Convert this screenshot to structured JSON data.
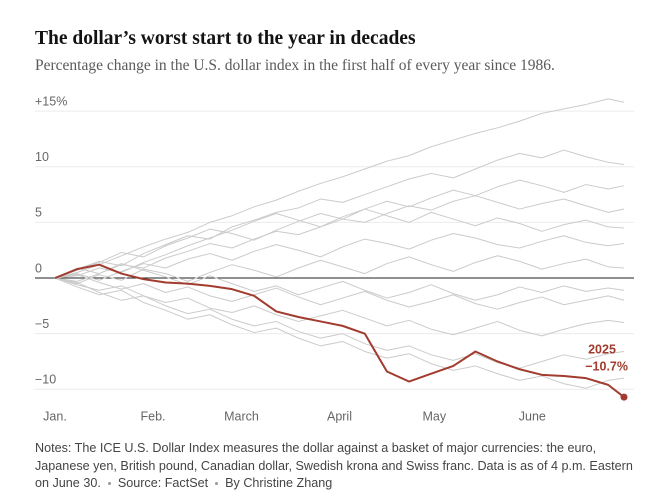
{
  "chart_data": {
    "type": "line",
    "title": "The dollar’s worst start to the year in decades",
    "subtitle": "Percentage change in the U.S. dollar index in the first half of every year since 1986.",
    "notes": "Notes: The ICE U.S. Dollar Index measures the dollar against a basket of major currencies: the euro, Japanese yen, British pound, Canadian dollar, Swedish krona and Swiss franc. Data is as of 4 p.m. Eastern on June 30.",
    "source": "Source: FactSet",
    "byline": "By Christine Zhang",
    "x": [
      0,
      7,
      14,
      21,
      28,
      35,
      42,
      49,
      56,
      63,
      70,
      77,
      84,
      91,
      98,
      105,
      112,
      119,
      126,
      133,
      140,
      147,
      154,
      161,
      168,
      175,
      180
    ],
    "xlim": [
      0,
      180
    ],
    "xticks": [
      {
        "value": 0,
        "label": "Jan."
      },
      {
        "value": 31,
        "label": "Feb."
      },
      {
        "value": 59,
        "label": "March"
      },
      {
        "value": 90,
        "label": "April"
      },
      {
        "value": 120,
        "label": "May"
      },
      {
        "value": 151,
        "label": "June"
      }
    ],
    "ylim": [
      -11.5,
      16
    ],
    "yticks": [
      {
        "value": 15,
        "label": "+15%"
      },
      10,
      5,
      0,
      {
        "value": -5,
        "label": "−5"
      },
      {
        "value": -10,
        "label": "−10"
      }
    ],
    "grid": true,
    "series": [
      {
        "color": "#cbcbcb",
        "values": [
          0,
          0.5,
          1.2,
          2.0,
          2.8,
          3.5,
          4.1,
          5.0,
          5.6,
          6.4,
          7.0,
          7.8,
          8.5,
          9.1,
          9.8,
          10.5,
          11.0,
          11.8,
          12.4,
          13.0,
          13.5,
          14.1,
          14.8,
          15.2,
          15.6,
          16.1,
          15.8
        ]
      },
      {
        "color": "#cbcbcb",
        "values": [
          0,
          0.8,
          1.5,
          1.1,
          2.2,
          3.0,
          3.8,
          3.5,
          4.6,
          5.2,
          5.9,
          6.3,
          7.1,
          6.8,
          7.5,
          8.2,
          8.9,
          9.4,
          9.0,
          9.8,
          10.6,
          11.2,
          10.8,
          11.5,
          10.9,
          10.4,
          10.2
        ]
      },
      {
        "color": "#cbcbcb",
        "values": [
          0,
          -0.3,
          0.4,
          1.2,
          0.9,
          1.8,
          2.4,
          3.1,
          2.7,
          3.5,
          4.2,
          3.9,
          4.6,
          5.3,
          5.0,
          5.8,
          6.5,
          6.1,
          6.9,
          7.4,
          6.8,
          6.2,
          6.7,
          7.1,
          6.5,
          5.9,
          6.2
        ]
      },
      {
        "color": "#cbcbcb",
        "values": [
          0,
          0.4,
          -0.2,
          0.6,
          1.3,
          0.9,
          1.7,
          2.2,
          1.6,
          2.4,
          3.0,
          2.5,
          1.9,
          2.8,
          3.5,
          3.1,
          2.6,
          3.4,
          4.0,
          3.6,
          3.0,
          2.7,
          3.3,
          3.8,
          3.2,
          2.9,
          3.1
        ]
      },
      {
        "color": "#cbcbcb",
        "values": [
          0,
          -0.5,
          0.3,
          -0.2,
          0.8,
          0.4,
          -0.3,
          0.5,
          1.2,
          0.7,
          0.1,
          0.9,
          1.6,
          1.0,
          0.4,
          1.3,
          1.9,
          1.2,
          0.6,
          1.4,
          2.0,
          1.5,
          0.8,
          1.3,
          1.7,
          1.0,
          0.9
        ]
      },
      {
        "color": "#cbcbcb",
        "values": [
          0,
          0.3,
          -0.4,
          -1.0,
          -0.5,
          -1.3,
          -0.8,
          -1.6,
          -2.1,
          -1.5,
          -0.9,
          -1.7,
          -2.4,
          -1.8,
          -1.2,
          -2.0,
          -2.6,
          -2.1,
          -1.5,
          -2.3,
          -2.8,
          -2.2,
          -1.7,
          -2.4,
          -2.0,
          -1.6,
          -2.0
        ]
      },
      {
        "color": "#cbcbcb",
        "values": [
          0,
          -0.6,
          -1.1,
          -0.7,
          -1.6,
          -2.2,
          -1.8,
          -2.7,
          -3.1,
          -2.5,
          -3.3,
          -3.9,
          -3.4,
          -2.9,
          -3.6,
          -4.3,
          -3.8,
          -4.6,
          -5.1,
          -4.5,
          -3.9,
          -4.7,
          -5.2,
          -4.6,
          -4.1,
          -3.8,
          -4.0
        ]
      },
      {
        "color": "#cbcbcb",
        "values": [
          0,
          -0.4,
          -1.3,
          -2.0,
          -1.6,
          -2.5,
          -3.2,
          -2.8,
          -3.7,
          -4.3,
          -3.9,
          -4.8,
          -5.4,
          -5.0,
          -5.9,
          -6.5,
          -6.1,
          -6.9,
          -7.4,
          -6.8,
          -7.6,
          -8.1,
          -7.5,
          -6.9,
          -7.3,
          -6.8,
          -6.6
        ]
      },
      {
        "color": "#cbcbcb",
        "values": [
          0,
          0.7,
          1.4,
          2.3,
          1.9,
          2.9,
          3.6,
          4.4,
          4.0,
          3.4,
          4.3,
          5.1,
          5.8,
          5.3,
          6.2,
          6.9,
          6.4,
          7.2,
          7.9,
          7.4,
          8.2,
          8.8,
          8.3,
          7.7,
          8.4,
          8.0,
          8.3
        ]
      },
      {
        "color": "#cbcbcb",
        "values": [
          0,
          -0.8,
          -1.5,
          -1.1,
          -2.2,
          -2.9,
          -3.7,
          -3.3,
          -4.2,
          -4.9,
          -4.5,
          -5.4,
          -6.1,
          -5.7,
          -6.6,
          -7.2,
          -6.8,
          -7.7,
          -8.3,
          -7.9,
          -8.6,
          -9.2,
          -8.8,
          -9.5,
          -9.9,
          -9.2,
          -9.0
        ]
      },
      {
        "color": "#cbcbcb",
        "values": [
          0,
          0.2,
          0.9,
          0.5,
          1.4,
          2.1,
          2.9,
          3.6,
          4.3,
          5.1,
          5.8,
          5.2,
          4.6,
          5.5,
          6.2,
          5.6,
          5.0,
          5.9,
          5.3,
          4.7,
          5.4,
          4.9,
          4.2,
          4.8,
          5.2,
          4.6,
          4.5
        ]
      },
      {
        "color": "#cbcbcb",
        "values": [
          0,
          0.9,
          0.4,
          1.3,
          0.7,
          0.1,
          -0.6,
          0.2,
          -0.5,
          -1.2,
          -0.7,
          -1.5,
          -0.9,
          -0.3,
          -1.1,
          -1.8,
          -1.3,
          -0.6,
          -1.4,
          -2.0,
          -1.5,
          -0.8,
          -1.3,
          -0.7,
          -1.2,
          -0.9,
          -1.1
        ]
      },
      {
        "name": "2025",
        "color": "#a13c2e",
        "values": [
          0,
          0.8,
          1.2,
          0.4,
          -0.1,
          -0.4,
          -0.5,
          -0.7,
          -1.0,
          -1.6,
          -3.0,
          -3.5,
          -3.9,
          -4.3,
          -5.0,
          -8.4,
          -9.3,
          -8.6,
          -7.9,
          -6.6,
          -7.5,
          -8.2,
          -8.7,
          -8.8,
          -9.0,
          -9.6,
          -10.7
        ],
        "value_labels": [
          null,
          null,
          null,
          null,
          null,
          null,
          null,
          null,
          null,
          null,
          null,
          null,
          null,
          null,
          null,
          null,
          null,
          null,
          null,
          null,
          null,
          null,
          null,
          null,
          null,
          null,
          "−10.7%"
        ]
      }
    ]
  }
}
